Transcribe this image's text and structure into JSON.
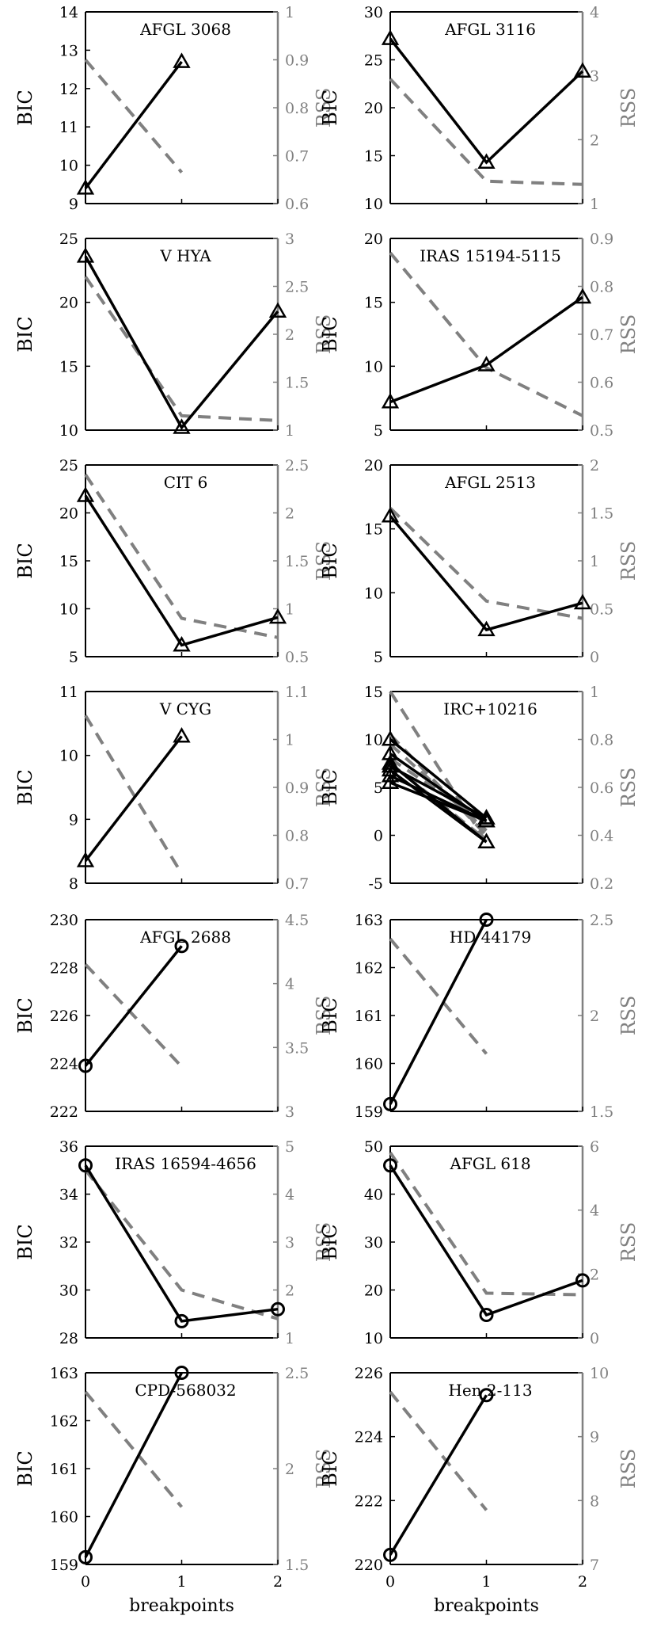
{
  "figure": {
    "xlabel": "breakpoints",
    "left_ylabel": "BIC",
    "right_ylabel": "RSS",
    "colors": {
      "bic": "#000000",
      "rss": "#808080",
      "axis": "#000000",
      "right_axis": "#808080"
    }
  },
  "chart_data": [
    {
      "type": "line",
      "title": "AFGL 3068",
      "marker": "triangle",
      "x": [
        0,
        1
      ],
      "bic": [
        9.4,
        12.7
      ],
      "rss": [
        0.9,
        0.665
      ],
      "ylim_bic": [
        9,
        14
      ],
      "ylim_rss": [
        0.6,
        1
      ],
      "yticks_bic": [
        "9",
        "10",
        "11",
        "12",
        "13",
        "14"
      ],
      "yticks_rss": [
        "0.6",
        "0.7",
        "0.8",
        "0.9",
        "1"
      ]
    },
    {
      "type": "line",
      "title": "AFGL 3116",
      "marker": "triangle",
      "x": [
        0,
        1,
        2
      ],
      "bic": [
        27.2,
        14.3,
        23.8
      ],
      "rss": [
        2.95,
        1.35,
        1.3
      ],
      "ylim_bic": [
        10,
        30
      ],
      "ylim_rss": [
        1,
        4
      ],
      "yticks_bic": [
        "10",
        "15",
        "20",
        "25",
        "30"
      ],
      "yticks_rss": [
        "1",
        "2",
        "3",
        "4"
      ]
    },
    {
      "type": "line",
      "title": "V HYA",
      "marker": "triangle",
      "x": [
        0,
        1,
        2
      ],
      "bic": [
        23.6,
        10.2,
        19.3
      ],
      "rss": [
        2.6,
        1.15,
        1.1
      ],
      "ylim_bic": [
        10,
        25
      ],
      "ylim_rss": [
        1,
        3
      ],
      "yticks_bic": [
        "10",
        "15",
        "20",
        "25"
      ],
      "yticks_rss": [
        "1",
        "1.5",
        "2",
        "2.5",
        "3"
      ]
    },
    {
      "type": "line",
      "title": "IRAS 15194-5115",
      "marker": "triangle",
      "x": [
        0,
        1,
        2
      ],
      "bic": [
        7.2,
        10.1,
        15.4
      ],
      "rss": [
        0.87,
        0.63,
        0.53
      ],
      "ylim_bic": [
        5,
        20
      ],
      "ylim_rss": [
        0.5,
        0.9
      ],
      "yticks_bic": [
        "5",
        "10",
        "15",
        "20"
      ],
      "yticks_rss": [
        "0.5",
        "0.6",
        "0.7",
        "0.8",
        "0.9"
      ]
    },
    {
      "type": "line",
      "title": "CIT 6",
      "marker": "triangle",
      "x": [
        0,
        1,
        2
      ],
      "bic": [
        21.8,
        6.2,
        9.1
      ],
      "rss": [
        2.4,
        0.9,
        0.7
      ],
      "ylim_bic": [
        5,
        25
      ],
      "ylim_rss": [
        0.5,
        2.5
      ],
      "yticks_bic": [
        "5",
        "10",
        "15",
        "20",
        "25"
      ],
      "yticks_rss": [
        "0.5",
        "1",
        "1.5",
        "2",
        "2.5"
      ]
    },
    {
      "type": "line",
      "title": "AFGL 2513",
      "marker": "triangle",
      "x": [
        0,
        1,
        2
      ],
      "bic": [
        16,
        7.1,
        9.2
      ],
      "rss": [
        1.55,
        0.58,
        0.4
      ],
      "ylim_bic": [
        5,
        20
      ],
      "ylim_rss": [
        0,
        2
      ],
      "yticks_bic": [
        "5",
        "10",
        "15",
        "20"
      ],
      "yticks_rss": [
        "0",
        "0.5",
        "1",
        "1.5",
        "2"
      ]
    },
    {
      "type": "line",
      "title": "V CYG",
      "marker": "triangle",
      "x": [
        0,
        1
      ],
      "bic": [
        8.35,
        10.3
      ],
      "rss": [
        1.05,
        0.72
      ],
      "ylim_bic": [
        8,
        11
      ],
      "ylim_rss": [
        0.7,
        1.1
      ],
      "yticks_bic": [
        "8",
        "9",
        "10",
        "11"
      ],
      "yticks_rss": [
        "0.7",
        "0.8",
        "0.9",
        "1",
        "1.1"
      ]
    },
    {
      "type": "line",
      "title": "IRC+10216",
      "marker": "triangle",
      "x": [
        0,
        1
      ],
      "bic_series": [
        [
          5.5,
          1.5
        ],
        [
          6.2,
          1.5
        ],
        [
          7.2,
          1.8
        ],
        [
          8.5,
          1.5
        ],
        [
          10,
          1.8
        ],
        [
          7.5,
          -0.7
        ],
        [
          6.8,
          -0.7
        ]
      ],
      "rss_series": [
        [
          1.0,
          0.37
        ],
        [
          0.82,
          0.4
        ],
        [
          0.78,
          0.42
        ],
        [
          0.72,
          0.45
        ],
        [
          0.7,
          0.38
        ]
      ],
      "ylim_bic": [
        -5,
        15
      ],
      "ylim_rss": [
        0.2,
        1
      ],
      "yticks_bic": [
        "-5",
        "0",
        "5",
        "10",
        "15"
      ],
      "yticks_rss": [
        "0.2",
        "0.4",
        "0.6",
        "0.8",
        "1"
      ]
    },
    {
      "type": "line",
      "title": "AFGL 2688",
      "marker": "circle",
      "x": [
        0,
        1
      ],
      "bic": [
        223.9,
        228.9
      ],
      "rss": [
        4.15,
        3.35
      ],
      "ylim_bic": [
        222,
        230
      ],
      "ylim_rss": [
        3,
        4.5
      ],
      "yticks_bic": [
        "222",
        "224",
        "226",
        "228",
        "230"
      ],
      "yticks_rss": [
        "3",
        "3.5",
        "4",
        "4.5"
      ]
    },
    {
      "type": "line",
      "title": "HD 44179",
      "marker": "circle",
      "x": [
        0,
        1
      ],
      "bic": [
        159.15,
        163
      ],
      "rss": [
        2.4,
        1.8
      ],
      "ylim_bic": [
        159,
        163
      ],
      "ylim_rss": [
        1.5,
        2.5
      ],
      "yticks_bic": [
        "159",
        "160",
        "161",
        "162",
        "163"
      ],
      "yticks_rss": [
        "1.5",
        "2",
        "2.5"
      ]
    },
    {
      "type": "line",
      "title": "IRAS 16594-4656",
      "marker": "circle",
      "x": [
        0,
        1,
        2
      ],
      "bic": [
        35.2,
        28.7,
        29.2
      ],
      "rss": [
        4.5,
        2.0,
        1.4
      ],
      "ylim_bic": [
        28,
        36
      ],
      "ylim_rss": [
        1,
        5
      ],
      "yticks_bic": [
        "28",
        "30",
        "32",
        "34",
        "36"
      ],
      "yticks_rss": [
        "1",
        "2",
        "3",
        "4",
        "5"
      ]
    },
    {
      "type": "line",
      "title": "AFGL 618",
      "marker": "circle",
      "x": [
        0,
        1,
        2
      ],
      "bic": [
        46,
        14.8,
        22
      ],
      "rss": [
        5.8,
        1.4,
        1.35
      ],
      "ylim_bic": [
        10,
        50
      ],
      "ylim_rss": [
        0,
        6
      ],
      "yticks_bic": [
        "10",
        "20",
        "30",
        "40",
        "50"
      ],
      "yticks_rss": [
        "0",
        "2",
        "4",
        "6"
      ]
    },
    {
      "type": "line",
      "title": "CPD-568032",
      "marker": "circle",
      "x": [
        0,
        1
      ],
      "bic": [
        159.15,
        163
      ],
      "rss": [
        2.4,
        1.8
      ],
      "ylim_bic": [
        159,
        163
      ],
      "ylim_rss": [
        1.5,
        2.5
      ],
      "yticks_bic": [
        "159",
        "160",
        "161",
        "162",
        "163"
      ],
      "yticks_rss": [
        "1.5",
        "2",
        "2.5"
      ]
    },
    {
      "type": "line",
      "title": "Hen 2-113",
      "marker": "circle",
      "x": [
        0,
        1
      ],
      "bic": [
        220.3,
        225.3
      ],
      "rss": [
        9.7,
        7.85
      ],
      "ylim_bic": [
        220,
        226
      ],
      "ylim_rss": [
        7,
        10
      ],
      "yticks_bic": [
        "220",
        "222",
        "224",
        "226"
      ],
      "yticks_rss": [
        "7",
        "8",
        "9",
        "10"
      ]
    }
  ],
  "xticks": [
    "0",
    "1",
    "2"
  ],
  "xlim": [
    0,
    2
  ]
}
